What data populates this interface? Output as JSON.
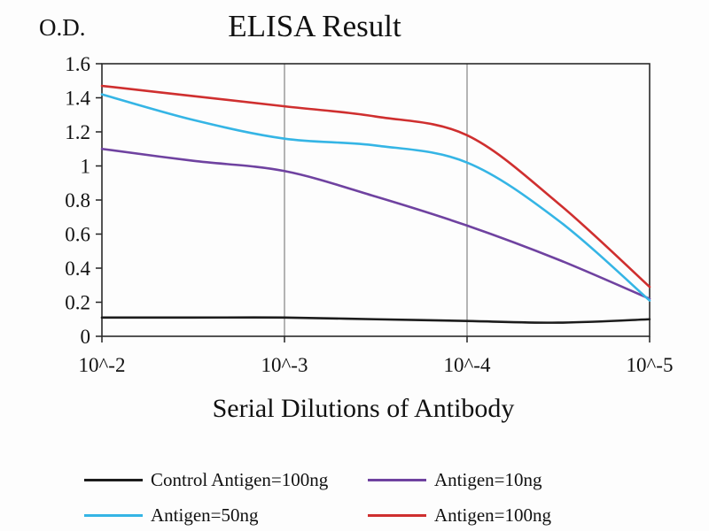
{
  "chart_data": {
    "type": "line",
    "title": "ELISA Result",
    "ylabel": "O.D.",
    "xlabel": "Serial Dilutions of Antibody",
    "x_tick_labels": [
      "10^-2",
      "10^-3",
      "10^-4",
      "10^-5"
    ],
    "y_ticks": [
      0,
      0.2,
      0.4,
      0.6,
      0.8,
      1,
      1.2,
      1.4,
      1.6
    ],
    "ylim": [
      0,
      1.6
    ],
    "grid": "vertical-only",
    "legend_position": "bottom",
    "x_exponents": [
      2,
      2.5,
      3,
      3.5,
      4,
      4.5,
      5
    ],
    "series": [
      {
        "name": "Control Antigen=100ng",
        "color": "#1c1c1c",
        "values": [
          0.11,
          0.11,
          0.11,
          0.1,
          0.09,
          0.08,
          0.1
        ]
      },
      {
        "name": "Antigen=10ng",
        "color": "#6f42a0",
        "values": [
          1.1,
          1.03,
          0.97,
          0.82,
          0.65,
          0.45,
          0.22
        ]
      },
      {
        "name": "Antigen=50ng",
        "color": "#35b5e5",
        "values": [
          1.42,
          1.27,
          1.16,
          1.12,
          1.02,
          0.68,
          0.21
        ]
      },
      {
        "name": "Antigen=100ng",
        "color": "#cf2f2f",
        "values": [
          1.47,
          1.41,
          1.35,
          1.29,
          1.18,
          0.78,
          0.29
        ]
      }
    ]
  }
}
